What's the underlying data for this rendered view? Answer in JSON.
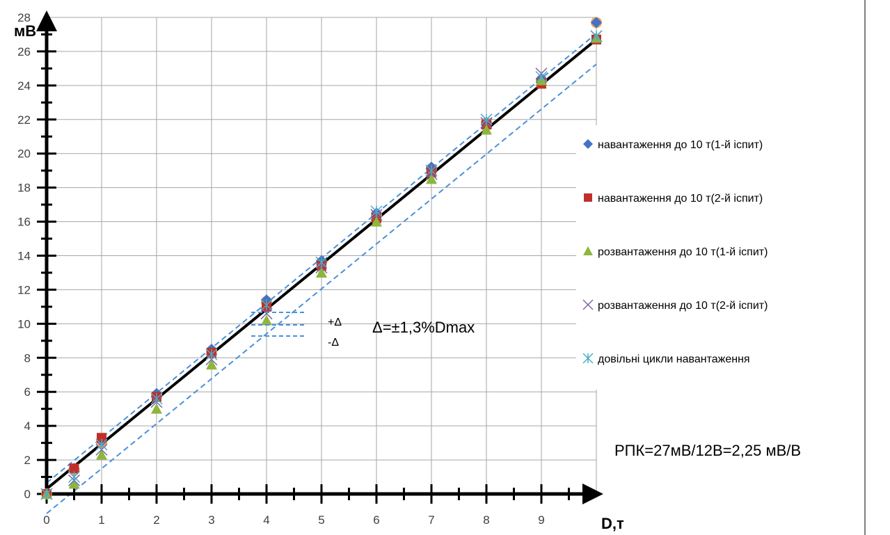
{
  "chart_data": {
    "type": "scatter",
    "ylabel": "мВ",
    "xlabel": "D,т",
    "xlim": [
      0,
      10
    ],
    "ylim": [
      0,
      28
    ],
    "x_ticks": [
      0,
      1,
      2,
      3,
      4,
      5,
      6,
      7,
      8,
      9
    ],
    "y_ticks": [
      0,
      2,
      4,
      6,
      8,
      10,
      12,
      14,
      16,
      18,
      20,
      22,
      24,
      26,
      28
    ],
    "grid": true,
    "legend_position": "right",
    "series": [
      {
        "name": "навантаження до 10 т(1-й іспит)",
        "marker": "diamond",
        "color": "#4472C4",
        "x": [
          0,
          0.5,
          1,
          2,
          3,
          4,
          5,
          6,
          7,
          8,
          9,
          10
        ],
        "y": [
          0,
          1.5,
          3.1,
          5.9,
          8.5,
          11.4,
          13.7,
          16.5,
          19.2,
          21.8,
          24.4,
          27.7
        ]
      },
      {
        "name": "навантаження до 10 т(2-й іспит)",
        "marker": "square",
        "color": "#C0302A",
        "x": [
          0,
          0.5,
          1,
          2,
          3,
          4,
          5,
          6,
          7,
          8,
          9,
          10
        ],
        "y": [
          0,
          1.5,
          3.3,
          5.7,
          8.3,
          11.0,
          13.4,
          16.2,
          18.9,
          21.7,
          24.1,
          26.7
        ]
      },
      {
        "name": "розвантаження до 10 т(1-й іспит)",
        "marker": "triangle",
        "color": "#8DB63C",
        "x": [
          0,
          0.5,
          1,
          2,
          3,
          4,
          5,
          6,
          7,
          8,
          9,
          10
        ],
        "y": [
          0,
          0.6,
          2.3,
          5.0,
          7.6,
          10.2,
          13.0,
          16.0,
          18.5,
          21.4,
          24.3,
          26.8
        ]
      },
      {
        "name": "розвантаження до 10 т(2-й іспит)",
        "marker": "x",
        "color": "#8064A2",
        "x": [
          0,
          0.5,
          1,
          2,
          3,
          4,
          5,
          6,
          7,
          8,
          9,
          10
        ],
        "y": [
          0,
          0.8,
          2.6,
          5.4,
          7.9,
          10.6,
          13.3,
          16.4,
          18.8,
          21.8,
          24.7,
          26.9
        ]
      },
      {
        "name": "довільні цикли навантаження",
        "marker": "star",
        "color": "#4BACC6",
        "x": [
          0,
          0.5,
          1,
          2,
          3,
          4,
          5,
          6,
          7,
          8,
          9,
          10
        ],
        "y": [
          0,
          1.0,
          2.9,
          5.6,
          8.2,
          11.1,
          13.6,
          16.6,
          19.0,
          22.0,
          24.5,
          26.9
        ]
      }
    ],
    "extra_points": [
      {
        "marker": "circle",
        "color": "#F4A460",
        "x": [
          0,
          0.5,
          1,
          2,
          3,
          4,
          5,
          6,
          7,
          8,
          9,
          10
        ],
        "y": [
          0,
          1.4,
          3.0,
          5.8,
          8.4,
          11.3,
          13.6,
          16.4,
          19.1,
          21.8,
          24.3,
          27.7
        ]
      }
    ],
    "trend_line": {
      "x": [
        0,
        10
      ],
      "y": [
        0.3,
        26.7
      ],
      "color": "#000000"
    },
    "band_lines": [
      {
        "x": [
          0,
          10
        ],
        "y": [
          0.65,
          27.05
        ],
        "color": "#4A90D9",
        "dash": "dashed"
      },
      {
        "x": [
          0,
          10
        ],
        "y": [
          -1.15,
          25.25
        ],
        "color": "#4A90D9",
        "dash": "dashed"
      }
    ],
    "annotations": {
      "plus_delta": "+Δ",
      "minus_delta": "-Δ",
      "delta_formula": "Δ=±1,3%Dmax",
      "rpk": "РПК=27мВ/12В=2,25 мВ/В"
    }
  }
}
